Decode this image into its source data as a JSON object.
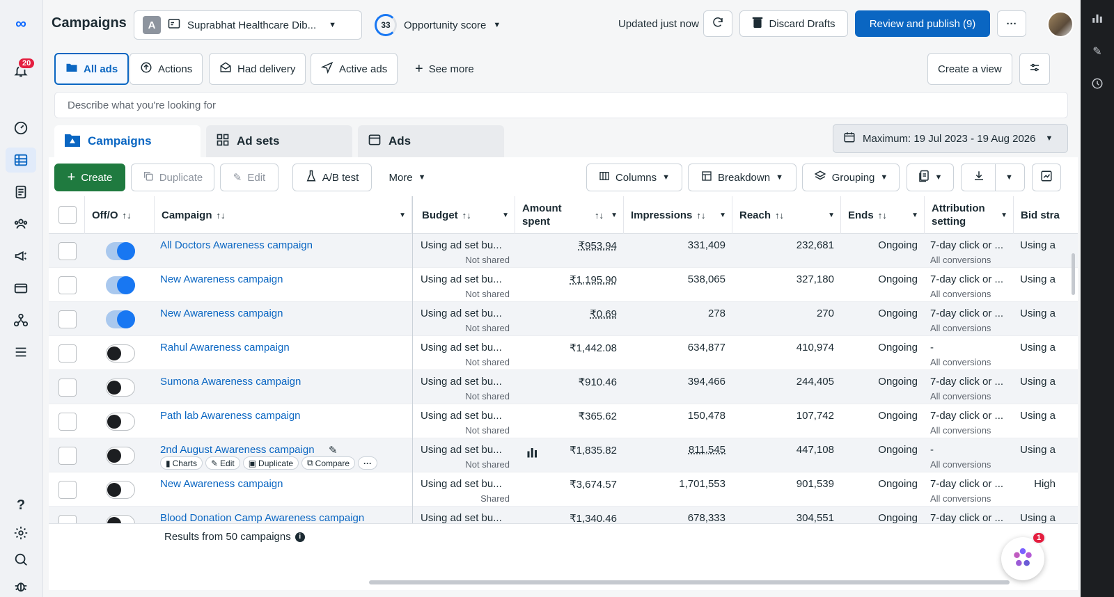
{
  "nav": {
    "notifications_count": "20",
    "icons": [
      "meta-logo-icon",
      "bell-icon",
      "dashboard-icon",
      "campaigns-grid-icon",
      "reports-icon",
      "audiences-icon",
      "ads-megaphone-icon",
      "billing-icon",
      "business-settings-icon",
      "menu-icon",
      "help-icon",
      "settings-icon",
      "search-icon",
      "bug-icon"
    ]
  },
  "header": {
    "title": "Campaigns",
    "account_initial": "A",
    "account_name": "Suprabhat Healthcare Dib...",
    "opportunity_score": "33",
    "opportunity_label": "Opportunity score",
    "updated_text": "Updated just now",
    "discard_label": "Discard Drafts",
    "publish_label": "Review and publish (9)"
  },
  "filters": {
    "all_ads": "All ads",
    "actions": "Actions",
    "had_delivery": "Had delivery",
    "active_ads": "Active ads",
    "see_more": "See more",
    "create_view": "Create a view",
    "search_placeholder": "Describe what you're looking for"
  },
  "tabs": {
    "campaigns": "Campaigns",
    "ad_sets": "Ad sets",
    "ads": "Ads",
    "date_range": "Maximum: 19 Jul 2023 - 19 Aug 2026"
  },
  "toolbar": {
    "create": "Create",
    "duplicate": "Duplicate",
    "edit": "Edit",
    "ab_test": "A/B test",
    "more": "More",
    "columns": "Columns",
    "breakdown": "Breakdown",
    "grouping": "Grouping"
  },
  "table": {
    "headers": {
      "offon": "Off/O",
      "campaign": "Campaign",
      "budget": "Budget",
      "amount_spent": "Amount spent",
      "impressions": "Impressions",
      "reach": "Reach",
      "ends": "Ends",
      "attribution": "Attribution setting",
      "bid": "Bid stra"
    },
    "rows": [
      {
        "name": "All Doctors Awareness campaign",
        "budget": "Using ad set bu...",
        "budget_sub": "Not shared",
        "spent": "₹953.94",
        "impressions": "331,409",
        "reach": "232,681",
        "ends": "Ongoing",
        "attribution": "7-day click or ...",
        "attribution_sub": "All conversions",
        "bid": "Using a"
      },
      {
        "name": "New Awareness campaign",
        "budget": "Using ad set bu...",
        "budget_sub": "Not shared",
        "spent": "₹1,195.90",
        "impressions": "538,065",
        "reach": "327,180",
        "ends": "Ongoing",
        "attribution": "7-day click or ...",
        "attribution_sub": "All conversions",
        "bid": "Using a"
      },
      {
        "name": "New Awareness campaign",
        "budget": "Using ad set bu...",
        "budget_sub": "Not shared",
        "spent": "₹0.69",
        "impressions": "278",
        "reach": "270",
        "ends": "Ongoing",
        "attribution": "7-day click or ...",
        "attribution_sub": "All conversions",
        "bid": "Using a"
      },
      {
        "name": "Rahul Awareness campaign",
        "budget": "Using ad set bu...",
        "budget_sub": "Not shared",
        "spent": "₹1,442.08",
        "impressions": "634,877",
        "reach": "410,974",
        "ends": "Ongoing",
        "attribution": "-",
        "attribution_sub": "All conversions",
        "bid": "Using a"
      },
      {
        "name": "Sumona Awareness campaign",
        "budget": "Using ad set bu...",
        "budget_sub": "Not shared",
        "spent": "₹910.46",
        "impressions": "394,466",
        "reach": "244,405",
        "ends": "Ongoing",
        "attribution": "7-day click or ...",
        "attribution_sub": "All conversions",
        "bid": "Using a"
      },
      {
        "name": "Path lab Awareness campaign",
        "budget": "Using ad set bu...",
        "budget_sub": "Not shared",
        "spent": "₹365.62",
        "impressions": "150,478",
        "reach": "107,742",
        "ends": "Ongoing",
        "attribution": "7-day click or ...",
        "attribution_sub": "All conversions",
        "bid": "Using a"
      },
      {
        "name": "2nd August Awareness campaign",
        "budget": "Using ad set bu...",
        "budget_sub": "Not shared",
        "spent": "₹1,835.82",
        "impressions": "811,545",
        "reach": "447,108",
        "ends": "Ongoing",
        "attribution": "-",
        "attribution_sub": "All conversions",
        "bid": "Using a"
      },
      {
        "name": "New Awareness campaign",
        "budget": "Using ad set bu...",
        "budget_sub": "Shared",
        "spent": "₹3,674.57",
        "impressions": "1,701,553",
        "reach": "901,539",
        "ends": "Ongoing",
        "attribution": "7-day click or ...",
        "attribution_sub": "All conversions",
        "bid": "High"
      },
      {
        "name": "Blood Donation Camp Awareness campaign",
        "budget": "Using ad set bu...",
        "budget_sub": "",
        "spent": "₹1,340.46",
        "impressions": "678,333",
        "reach": "304,551",
        "ends": "Ongoing",
        "attribution": "7-day click or ...",
        "attribution_sub": "",
        "bid": "Using a"
      }
    ],
    "hover_actions": {
      "charts": "Charts",
      "edit": "Edit",
      "duplicate": "Duplicate",
      "compare": "Compare"
    },
    "results_text": "Results from 50 campaigns"
  },
  "fab_badge": "1",
  "colors": {
    "primary": "#0a66c2",
    "create_green": "#1f7a3f",
    "badge_red": "#e41e3f"
  }
}
